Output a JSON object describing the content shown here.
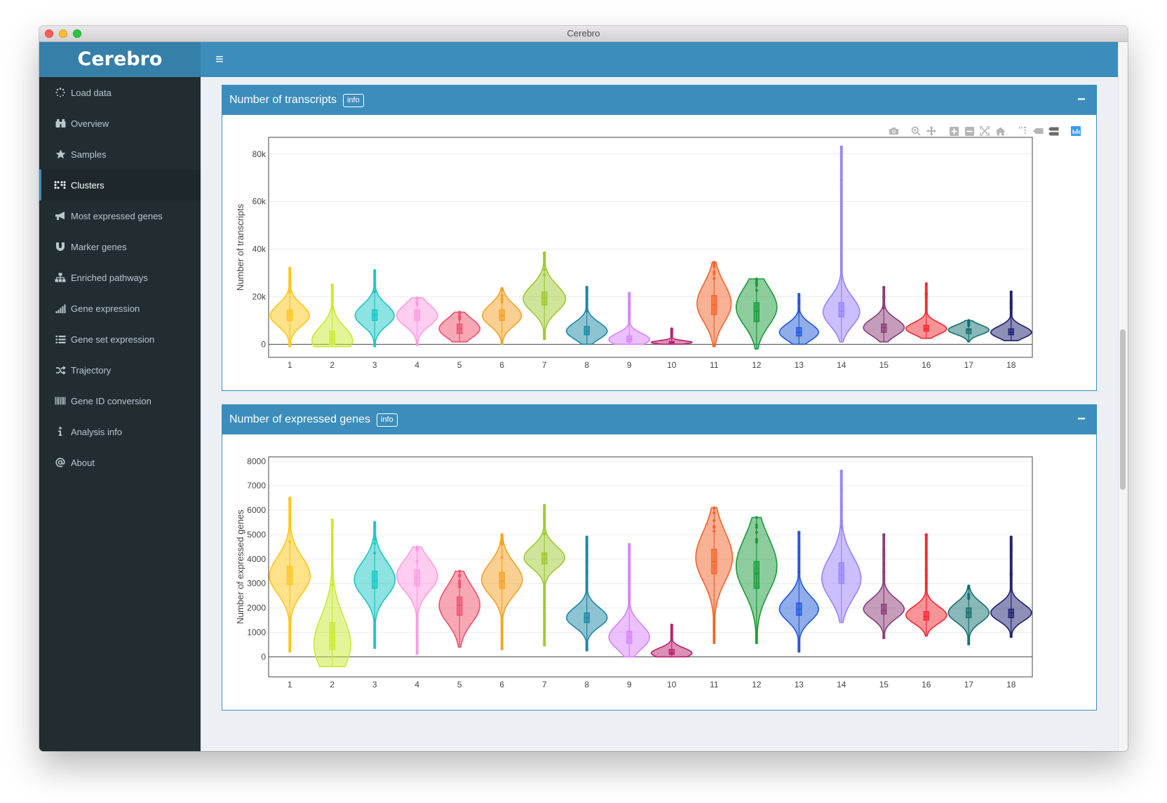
{
  "window": {
    "title": "Cerebro"
  },
  "app": {
    "logo": "Cerebro",
    "menu_toggle_icon": "≡"
  },
  "sidebar": {
    "items": [
      {
        "label": "Load data",
        "icon": "spinner-icon",
        "active": false
      },
      {
        "label": "Overview",
        "icon": "binoculars-icon",
        "active": false
      },
      {
        "label": "Samples",
        "icon": "star-icon",
        "active": false
      },
      {
        "label": "Clusters",
        "icon": "braille-icon",
        "active": true
      },
      {
        "label": "Most expressed genes",
        "icon": "bullhorn-icon",
        "active": false
      },
      {
        "label": "Marker genes",
        "icon": "magnet-icon",
        "active": false
      },
      {
        "label": "Enriched pathways",
        "icon": "sitemap-icon",
        "active": false
      },
      {
        "label": "Gene expression",
        "icon": "signal-icon",
        "active": false
      },
      {
        "label": "Gene set expression",
        "icon": "list-icon",
        "active": false
      },
      {
        "label": "Trajectory",
        "icon": "random-icon",
        "active": false
      },
      {
        "label": "Gene ID conversion",
        "icon": "barcode-icon",
        "active": false
      },
      {
        "label": "Analysis info",
        "icon": "info-icon",
        "active": false
      },
      {
        "label": "About",
        "icon": "at-icon",
        "active": false
      }
    ]
  },
  "boxes": [
    {
      "title": "Number of transcripts",
      "info_label": "info",
      "collapse_label": "−"
    },
    {
      "title": "Number of expressed genes",
      "info_label": "info",
      "collapse_label": "−"
    }
  ],
  "modebar": [
    "camera-icon",
    "zoom-icon",
    "pan-icon",
    "zoom-in-icon",
    "zoom-out-icon",
    "autoscale-icon",
    "reset-axes-icon",
    "spike-lines-icon",
    "hover-closest-icon",
    "hover-compare-icon",
    "plotly-logo-icon"
  ],
  "chart_data": [
    {
      "type": "violin",
      "title": "",
      "xlabel": "",
      "ylabel": "Number of transcripts",
      "ylim": [
        -5500,
        87000
      ],
      "yticks": [
        0,
        20000,
        40000,
        60000,
        80000
      ],
      "ytick_labels": [
        "0",
        "20k",
        "40k",
        "60k",
        "80k"
      ],
      "grid": true,
      "categories": [
        "1",
        "2",
        "3",
        "4",
        "5",
        "6",
        "7",
        "8",
        "9",
        "10",
        "11",
        "12",
        "13",
        "14",
        "15",
        "16",
        "17",
        "18"
      ],
      "colors": [
        "#ffc515",
        "#c8ea31",
        "#1cc5c5",
        "#ff9be0",
        "#f24f6c",
        "#f5a226",
        "#9ec932",
        "#1d87a6",
        "#d882ff",
        "#b8226e",
        "#f2642a",
        "#1b9a3a",
        "#1f5ad8",
        "#9a80ff",
        "#8a3b78",
        "#f22931",
        "#167070",
        "#1e2070"
      ],
      "series": [
        {
          "name": "1",
          "min": -1000,
          "max": 32000,
          "q1": 10000,
          "median": 12500,
          "q3": 14500,
          "peak": 12000,
          "spread": 0.48
        },
        {
          "name": "2",
          "min": -1000,
          "max": 25000,
          "q1": 0,
          "median": 2000,
          "q3": 5500,
          "peak": 1500,
          "spread": 0.5
        },
        {
          "name": "3",
          "min": -1000,
          "max": 31000,
          "q1": 10000,
          "median": 12500,
          "q3": 14500,
          "peak": 12000,
          "spread": 0.48
        },
        {
          "name": "4",
          "min": -500,
          "max": 19500,
          "q1": 10000,
          "median": 12500,
          "q3": 14500,
          "peak": 12000,
          "spread": 0.5
        },
        {
          "name": "5",
          "min": 1000,
          "max": 13500,
          "q1": 4500,
          "median": 6500,
          "q3": 8500,
          "peak": 6500,
          "spread": 0.5
        },
        {
          "name": "6",
          "min": 0,
          "max": 23500,
          "q1": 10000,
          "median": 12000,
          "q3": 14500,
          "peak": 12000,
          "spread": 0.48
        },
        {
          "name": "7",
          "min": 2000,
          "max": 38500,
          "q1": 16500,
          "median": 19500,
          "q3": 22000,
          "peak": 19000,
          "spread": 0.52
        },
        {
          "name": "8",
          "min": 0,
          "max": 24000,
          "q1": 4000,
          "median": 5500,
          "q3": 7500,
          "peak": 5500,
          "spread": 0.5
        },
        {
          "name": "9",
          "min": 0,
          "max": 21500,
          "q1": 1000,
          "median": 2000,
          "q3": 3500,
          "peak": 2000,
          "spread": 0.5
        },
        {
          "name": "10",
          "min": 0,
          "max": 6500,
          "q1": 500,
          "median": 800,
          "q3": 1200,
          "peak": 800,
          "spread": 0.5
        },
        {
          "name": "11",
          "min": -1000,
          "max": 34500,
          "q1": 12500,
          "median": 16500,
          "q3": 20500,
          "peak": 17000,
          "spread": 0.42
        },
        {
          "name": "12",
          "min": -2000,
          "max": 27500,
          "q1": 9500,
          "median": 14000,
          "q3": 17500,
          "peak": 15500,
          "spread": 0.5
        },
        {
          "name": "13",
          "min": 0,
          "max": 21000,
          "q1": 3500,
          "median": 5000,
          "q3": 7000,
          "peak": 5000,
          "spread": 0.48
        },
        {
          "name": "14",
          "min": 1000,
          "max": 83000,
          "q1": 11500,
          "median": 14000,
          "q3": 17500,
          "peak": 13500,
          "spread": 0.45
        },
        {
          "name": "15",
          "min": 1000,
          "max": 24000,
          "q1": 5000,
          "median": 7000,
          "q3": 8500,
          "peak": 7000,
          "spread": 0.5
        },
        {
          "name": "16",
          "min": 2500,
          "max": 25500,
          "q1": 5500,
          "median": 6500,
          "q3": 8000,
          "peak": 6500,
          "spread": 0.5
        },
        {
          "name": "17",
          "min": 1000,
          "max": 10000,
          "q1": 4500,
          "median": 6000,
          "q3": 6500,
          "peak": 6000,
          "spread": 0.5
        },
        {
          "name": "18",
          "min": 1500,
          "max": 22000,
          "q1": 4000,
          "median": 5000,
          "q3": 6500,
          "peak": 5000,
          "spread": 0.5
        }
      ]
    },
    {
      "type": "violin",
      "title": "",
      "xlabel": "",
      "ylabel": "Number of expressed genes",
      "ylim": [
        -820,
        8180
      ],
      "yticks": [
        0,
        1000,
        2000,
        3000,
        4000,
        5000,
        6000,
        7000,
        8000
      ],
      "ytick_labels": [
        "0",
        "1000",
        "2000",
        "3000",
        "4000",
        "5000",
        "6000",
        "7000",
        "8000"
      ],
      "grid": true,
      "categories": [
        "1",
        "2",
        "3",
        "4",
        "5",
        "6",
        "7",
        "8",
        "9",
        "10",
        "11",
        "12",
        "13",
        "14",
        "15",
        "16",
        "17",
        "18"
      ],
      "colors": [
        "#ffc515",
        "#c8ea31",
        "#1cc5c5",
        "#ff9be0",
        "#f24f6c",
        "#f5a226",
        "#9ec932",
        "#1d87a6",
        "#d882ff",
        "#b8226e",
        "#f2642a",
        "#1b9a3a",
        "#1f5ad8",
        "#9a80ff",
        "#8a3b78",
        "#f22931",
        "#167070",
        "#1e2070"
      ],
      "series": [
        {
          "name": "1",
          "min": 200,
          "max": 6500,
          "q1": 2950,
          "median": 3300,
          "q3": 3700,
          "peak": 3300,
          "spread": 0.5
        },
        {
          "name": "2",
          "min": -400,
          "max": 5600,
          "q1": 300,
          "median": 500,
          "q3": 1400,
          "peak": 500,
          "spread": 0.45
        },
        {
          "name": "3",
          "min": 350,
          "max": 5500,
          "q1": 2800,
          "median": 3100,
          "q3": 3500,
          "peak": 3150,
          "spread": 0.5
        },
        {
          "name": "4",
          "min": 100,
          "max": 4500,
          "q1": 2900,
          "median": 3250,
          "q3": 3550,
          "peak": 3300,
          "spread": 0.5
        },
        {
          "name": "5",
          "min": 400,
          "max": 3500,
          "q1": 1700,
          "median": 2100,
          "q3": 2450,
          "peak": 2100,
          "spread": 0.5
        },
        {
          "name": "6",
          "min": 300,
          "max": 5000,
          "q1": 2800,
          "median": 3100,
          "q3": 3450,
          "peak": 3150,
          "spread": 0.5
        },
        {
          "name": "7",
          "min": 450,
          "max": 6200,
          "q1": 3800,
          "median": 4000,
          "q3": 4250,
          "peak": 4050,
          "spread": 0.5
        },
        {
          "name": "8",
          "min": 250,
          "max": 4900,
          "q1": 1400,
          "median": 1600,
          "q3": 1800,
          "peak": 1600,
          "spread": 0.5
        },
        {
          "name": "9",
          "min": 0,
          "max": 4600,
          "q1": 550,
          "median": 800,
          "q3": 1050,
          "peak": 800,
          "spread": 0.5
        },
        {
          "name": "10",
          "min": 0,
          "max": 1300,
          "q1": 100,
          "median": 150,
          "q3": 300,
          "peak": 150,
          "spread": 0.5
        },
        {
          "name": "11",
          "min": 550,
          "max": 6100,
          "q1": 3400,
          "median": 3900,
          "q3": 4400,
          "peak": 4050,
          "spread": 0.45
        },
        {
          "name": "12",
          "min": 550,
          "max": 5700,
          "q1": 2800,
          "median": 3400,
          "q3": 3900,
          "peak": 3700,
          "spread": 0.5
        },
        {
          "name": "13",
          "min": 200,
          "max": 5100,
          "q1": 1700,
          "median": 1950,
          "q3": 2200,
          "peak": 1950,
          "spread": 0.48
        },
        {
          "name": "14",
          "min": 1400,
          "max": 7600,
          "q1": 3000,
          "median": 3350,
          "q3": 3850,
          "peak": 3200,
          "spread": 0.48
        },
        {
          "name": "15",
          "min": 750,
          "max": 5000,
          "q1": 1750,
          "median": 1900,
          "q3": 2150,
          "peak": 1950,
          "spread": 0.5
        },
        {
          "name": "16",
          "min": 850,
          "max": 5000,
          "q1": 1500,
          "median": 1650,
          "q3": 1850,
          "peak": 1700,
          "spread": 0.5
        },
        {
          "name": "17",
          "min": 500,
          "max": 2900,
          "q1": 1600,
          "median": 1800,
          "q3": 2000,
          "peak": 1800,
          "spread": 0.5
        },
        {
          "name": "18",
          "min": 800,
          "max": 4900,
          "q1": 1600,
          "median": 1800,
          "q3": 1950,
          "peak": 1800,
          "spread": 0.5
        }
      ]
    }
  ]
}
